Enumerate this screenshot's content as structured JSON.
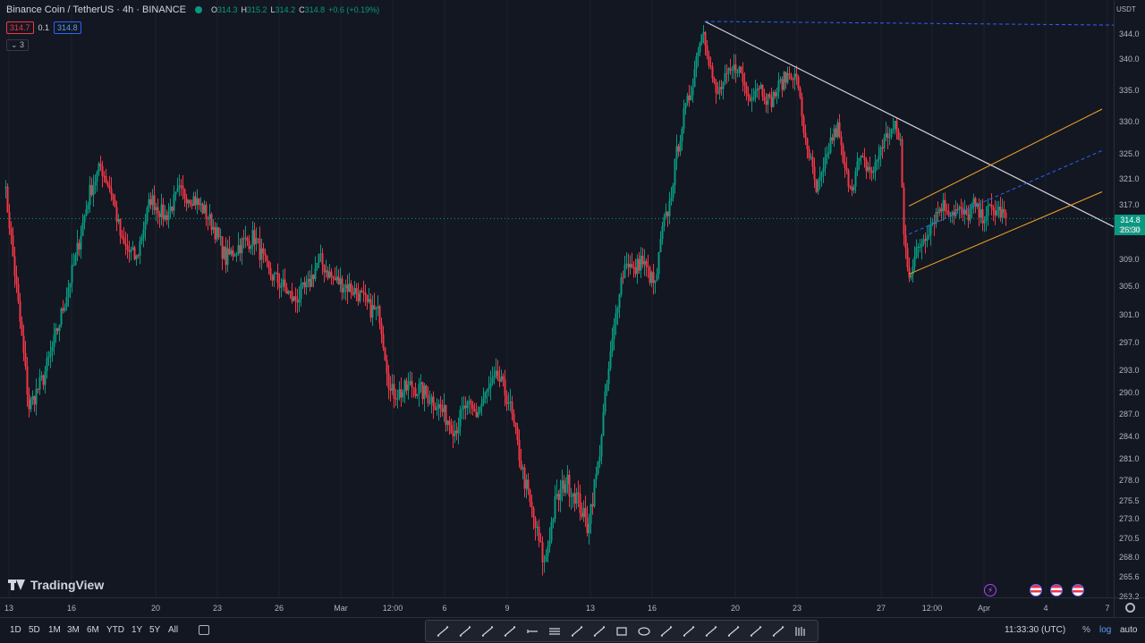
{
  "header": {
    "symbol_title": "Binance Coin / TetherUS · 4h · BINANCE",
    "ohlc": {
      "o_label": "O",
      "o": "314.3",
      "h_label": "H",
      "h": "315.2",
      "l_label": "L",
      "l": "314.2",
      "c_label": "C",
      "c": "314.8",
      "change": "+0.6 (+0.19%)"
    },
    "bid": "314.7",
    "spread": "0.1",
    "ask": "314.8",
    "indicators_toggle": "⌄ 3"
  },
  "price_axis": {
    "unit": "USDT",
    "ticks": [
      "344.0",
      "340.0",
      "335.0",
      "330.0",
      "325.0",
      "321.0",
      "317.0",
      "313.0",
      "309.0",
      "305.0",
      "301.0",
      "297.0",
      "293.0",
      "290.0",
      "287.0",
      "284.0",
      "281.0",
      "278.0",
      "275.5",
      "273.0",
      "270.5",
      "268.0",
      "265.6",
      "263.2"
    ],
    "last_price": "314.8",
    "countdown": "26:30"
  },
  "time_axis": {
    "ticks": [
      "13",
      "16",
      "20",
      "23",
      "26",
      "Mar",
      "12:00",
      "6",
      "9",
      "13",
      "16",
      "20",
      "23",
      "27",
      "12:00",
      "Apr",
      "4",
      "7"
    ]
  },
  "logo_text": "TradingView",
  "timeframes": [
    "1D",
    "5D",
    "1M",
    "3M",
    "6M",
    "YTD",
    "1Y",
    "5Y",
    "All"
  ],
  "clock": "11:33:30 (UTC)",
  "scale_options": {
    "percent": "%",
    "log": "log",
    "auto": "auto"
  },
  "colors": {
    "up": "#089981",
    "down": "#f23645",
    "background": "#131722",
    "trendline": "#d1d4dc",
    "channel": "#f5a623",
    "channel_mid": "#2962ff",
    "ath_line": "#2962ff"
  },
  "drawing_tools": [
    "trend-angle-icon",
    "ray-icon",
    "extended-line-icon",
    "info-line-icon",
    "horizontal-ray-icon",
    "parallel-channel-icon",
    "regression-icon",
    "fib-fan-icon",
    "rectangle-icon",
    "ellipse-icon",
    "arrow-marker-icon",
    "flag-marker-icon",
    "date-range-icon",
    "price-range-icon",
    "long-position-icon",
    "short-position-icon",
    "bars-pattern-icon"
  ],
  "chart_data": {
    "type": "candlestick",
    "symbol": "BNBUSDT",
    "timeframe": "4h",
    "price_range": [
      262,
      347
    ],
    "waypoints": [
      [
        0,
        321
      ],
      [
        6,
        307
      ],
      [
        14,
        288
      ],
      [
        22,
        292
      ],
      [
        28,
        297
      ],
      [
        34,
        303
      ],
      [
        40,
        309
      ],
      [
        48,
        319
      ],
      [
        54,
        323
      ],
      [
        60,
        319
      ],
      [
        66,
        311
      ],
      [
        74,
        309
      ],
      [
        82,
        318
      ],
      [
        90,
        315
      ],
      [
        98,
        319
      ],
      [
        106,
        318
      ],
      [
        112,
        316
      ],
      [
        118,
        313
      ],
      [
        124,
        309
      ],
      [
        132,
        311
      ],
      [
        140,
        312
      ],
      [
        148,
        307
      ],
      [
        156,
        305
      ],
      [
        162,
        303
      ],
      [
        170,
        305
      ],
      [
        176,
        309
      ],
      [
        184,
        306
      ],
      [
        192,
        305
      ],
      [
        198,
        304
      ],
      [
        204,
        302
      ],
      [
        210,
        301
      ],
      [
        216,
        290
      ],
      [
        222,
        290
      ],
      [
        228,
        291
      ],
      [
        234,
        290
      ],
      [
        240,
        289
      ],
      [
        246,
        287
      ],
      [
        252,
        285
      ],
      [
        258,
        288
      ],
      [
        264,
        287
      ],
      [
        270,
        290
      ],
      [
        276,
        292
      ],
      [
        282,
        289
      ],
      [
        290,
        279
      ],
      [
        296,
        273
      ],
      [
        302,
        267
      ],
      [
        308,
        275
      ],
      [
        314,
        278
      ],
      [
        320,
        276
      ],
      [
        326,
        272
      ],
      [
        332,
        280
      ],
      [
        336,
        289
      ],
      [
        340,
        297
      ],
      [
        344,
        305
      ],
      [
        348,
        309
      ],
      [
        352,
        307
      ],
      [
        356,
        309
      ],
      [
        360,
        307
      ],
      [
        364,
        305
      ],
      [
        368,
        313
      ],
      [
        372,
        317
      ],
      [
        376,
        325
      ],
      [
        380,
        331
      ],
      [
        384,
        335
      ],
      [
        388,
        342
      ],
      [
        391,
        345
      ],
      [
        394,
        340
      ],
      [
        398,
        334
      ],
      [
        404,
        337
      ],
      [
        410,
        339
      ],
      [
        416,
        334
      ],
      [
        422,
        336
      ],
      [
        428,
        333
      ],
      [
        434,
        336
      ],
      [
        440,
        338
      ],
      [
        444,
        336
      ],
      [
        446,
        330
      ],
      [
        450,
        325
      ],
      [
        454,
        319
      ],
      [
        458,
        322
      ],
      [
        462,
        327
      ],
      [
        466,
        329
      ],
      [
        470,
        322
      ],
      [
        474,
        320
      ],
      [
        478,
        324
      ],
      [
        482,
        323
      ],
      [
        486,
        322
      ],
      [
        490,
        326
      ],
      [
        494,
        328
      ],
      [
        498,
        329
      ],
      [
        501,
        327
      ],
      [
        503,
        312
      ],
      [
        506,
        307
      ],
      [
        512,
        311
      ],
      [
        518,
        314
      ],
      [
        524,
        317
      ],
      [
        530,
        316
      ],
      [
        534,
        316
      ],
      [
        538,
        315
      ],
      [
        542,
        317
      ],
      [
        546,
        315
      ],
      [
        550,
        316
      ],
      [
        556,
        316
      ],
      [
        560,
        315
      ]
    ],
    "drawings": [
      {
        "type": "trendline",
        "from": [
          392,
          346
        ],
        "to": [
          628,
          312.5
        ]
      },
      {
        "type": "ray",
        "from": [
          392,
          346
        ],
        "to": [
          628,
          345.4
        ]
      },
      {
        "type": "channel_upper",
        "from": [
          506,
          316.8
        ],
        "to": [
          614,
          332
        ]
      },
      {
        "type": "channel_mid",
        "from": [
          506,
          312.4
        ],
        "to": [
          614,
          325.5
        ]
      },
      {
        "type": "channel_lower",
        "from": [
          506,
          306.8
        ],
        "to": [
          614,
          319
        ]
      }
    ],
    "last_close": 314.8
  }
}
